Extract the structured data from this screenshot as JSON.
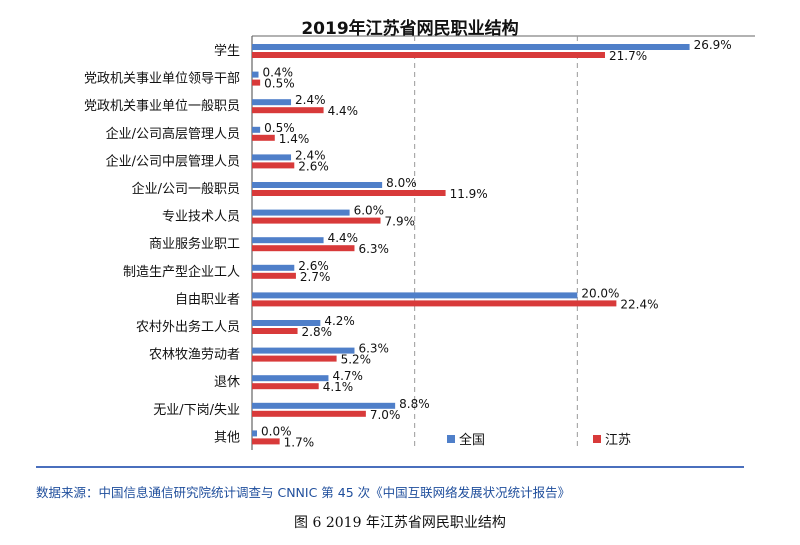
{
  "title": "2019年江苏省网民职业结构",
  "source": "数据来源：中国信息通信研究院统计调查与 CNNIC 第 45 次《中国互联网络发展状况统计报告》",
  "caption": "图 6 2019 年江苏省网民职业结构",
  "colors": {
    "national": "#4f7fc9",
    "jiangsu": "#d83a3a",
    "grid": "#999999",
    "source": "#1f4e9c"
  },
  "chart_data": {
    "type": "bar",
    "orientation": "horizontal",
    "title": "2019年江苏省网民职业结构",
    "categories": [
      "学生",
      "党政机关事业单位领导干部",
      "党政机关事业单位一般职员",
      "企业/公司高层管理人员",
      "企业/公司中层管理人员",
      "企业/公司一般职员",
      "专业技术人员",
      "商业服务业职工",
      "制造生产型企业工人",
      "自由职业者",
      "农村外出务工人员",
      "农林牧渔劳动者",
      "退休",
      "无业/下岗/失业",
      "其他"
    ],
    "series": [
      {
        "name": "全国",
        "values": [
          26.9,
          0.4,
          2.4,
          0.5,
          2.4,
          8.0,
          6.0,
          4.4,
          2.6,
          20.0,
          4.2,
          6.3,
          4.7,
          8.8,
          0.0
        ],
        "labels": [
          "26.9%",
          "0.4%",
          "2.4%",
          "0.5%",
          "2.4%",
          "8.0%",
          "6.0%",
          "4.4%",
          "2.6%",
          "20.0%",
          "4.2%",
          "6.3%",
          "4.7%",
          "8.8%",
          "0.0%"
        ]
      },
      {
        "name": "江苏",
        "values": [
          21.7,
          0.5,
          4.4,
          1.4,
          2.6,
          11.9,
          7.9,
          6.3,
          2.7,
          22.4,
          2.8,
          5.2,
          4.1,
          7.0,
          1.7
        ],
        "labels": [
          "21.7%",
          "0.5%",
          "4.4%",
          "1.4%",
          "2.6%",
          "11.9%",
          "7.9%",
          "6.3%",
          "2.7%",
          "22.4%",
          "2.8%",
          "5.2%",
          "4.1%",
          "7.0%",
          "1.7%"
        ]
      }
    ],
    "xlim": [
      0,
      30
    ],
    "grid": true,
    "legend_position": "bottom-right"
  }
}
